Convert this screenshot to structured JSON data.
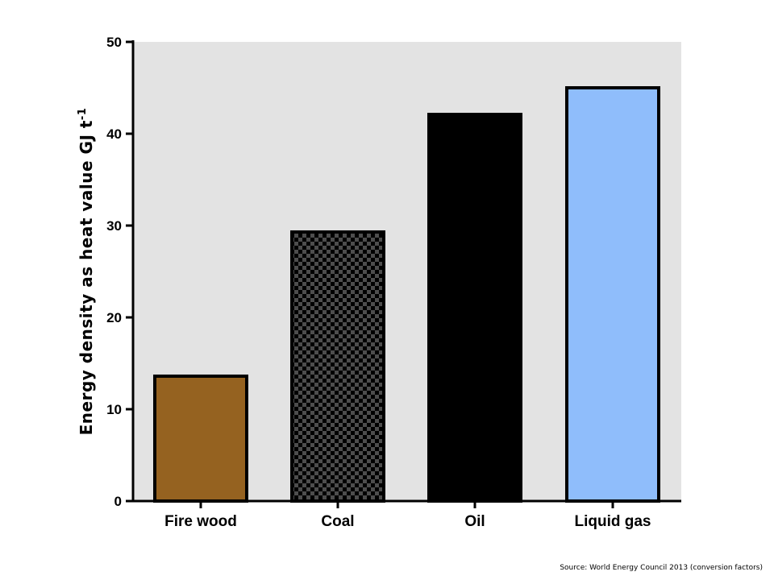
{
  "chart_data": {
    "type": "bar",
    "categories": [
      "Fire wood",
      "Coal",
      "Oil",
      "Liquid gas"
    ],
    "values": [
      13.6,
      29.3,
      42.1,
      45.0
    ],
    "ylabel_main": "Energy density as heat value GJ t",
    "ylabel_superscript": "-1",
    "ylim": [
      0,
      50
    ],
    "yticks": [
      "0",
      "10",
      "20",
      "30",
      "40",
      "50"
    ],
    "ytick_values": [
      0,
      10,
      20,
      30,
      40,
      50
    ],
    "grid": false,
    "plot_background": "#e3e3e3",
    "bar_fills": [
      {
        "category": "Fire wood",
        "fill": "#956220",
        "pattern": "solid"
      },
      {
        "category": "Coal",
        "fill": "#4d4d4d",
        "pattern": "checkerboard",
        "pattern_color": "#000000"
      },
      {
        "category": "Oil",
        "fill": "#000000",
        "pattern": "solid"
      },
      {
        "category": "Liquid gas",
        "fill": "#8fbdfb",
        "pattern": "solid"
      }
    ],
    "bar_outline": "#000000"
  },
  "source_note": "Source: World Energy Council 2013 (conversion factors)"
}
